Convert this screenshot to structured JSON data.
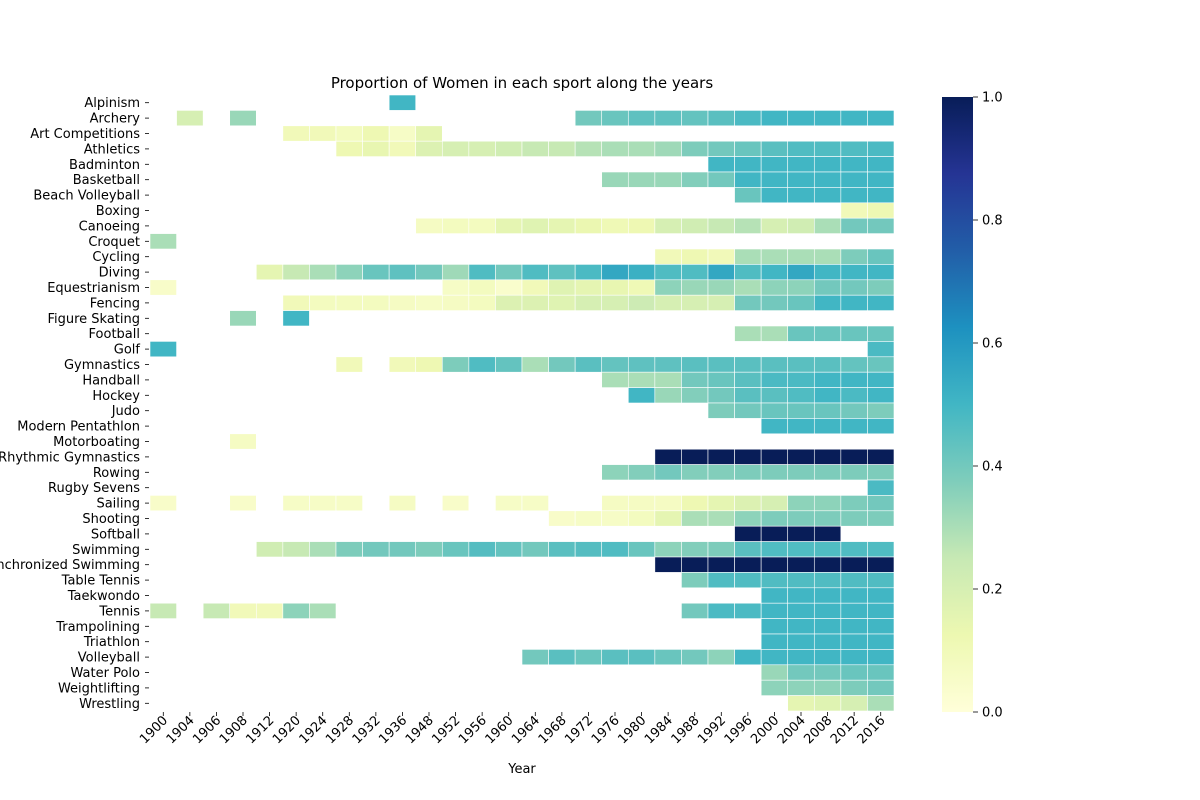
{
  "chart_data": {
    "type": "heatmap",
    "title": "Proportion of Women in each sport along the years",
    "xlabel": "Year",
    "ylabel": "",
    "x": [
      "1900",
      "1904",
      "1906",
      "1908",
      "1912",
      "1920",
      "1924",
      "1928",
      "1932",
      "1936",
      "1948",
      "1952",
      "1956",
      "1960",
      "1964",
      "1968",
      "1972",
      "1976",
      "1980",
      "1984",
      "1988",
      "1992",
      "1996",
      "2000",
      "2004",
      "2008",
      "2012",
      "2016"
    ],
    "y": [
      "Alpinism",
      "Archery",
      "Art Competitions",
      "Athletics",
      "Badminton",
      "Basketball",
      "Beach Volleyball",
      "Boxing",
      "Canoeing",
      "Croquet",
      "Cycling",
      "Diving",
      "Equestrianism",
      "Fencing",
      "Figure Skating",
      "Football",
      "Golf",
      "Gymnastics",
      "Handball",
      "Hockey",
      "Judo",
      "Modern Pentathlon",
      "Motorboating",
      "Rhythmic Gymnastics",
      "Rowing",
      "Rugby Sevens",
      "Sailing",
      "Shooting",
      "Softball",
      "Swimming",
      "Synchronized Swimming",
      "Table Tennis",
      "Taekwondo",
      "Tennis",
      "Trampolining",
      "Triathlon",
      "Volleyball",
      "Water Polo",
      "Weightlifting",
      "Wrestling"
    ],
    "values": [
      [
        null,
        null,
        null,
        null,
        null,
        null,
        null,
        null,
        null,
        0.5,
        null,
        null,
        null,
        null,
        null,
        null,
        null,
        null,
        null,
        null,
        null,
        null,
        null,
        null,
        null,
        null,
        null,
        null
      ],
      [
        null,
        0.2,
        null,
        0.33,
        null,
        null,
        null,
        null,
        null,
        null,
        null,
        null,
        null,
        null,
        null,
        null,
        0.4,
        0.42,
        0.44,
        0.44,
        0.43,
        0.45,
        0.48,
        0.5,
        0.5,
        0.5,
        0.5,
        0.5
      ],
      [
        null,
        null,
        null,
        null,
        null,
        0.1,
        0.1,
        0.08,
        0.12,
        0.06,
        0.15,
        null,
        null,
        null,
        null,
        null,
        null,
        null,
        null,
        null,
        null,
        null,
        null,
        null,
        null,
        null,
        null,
        null
      ],
      [
        null,
        null,
        null,
        null,
        null,
        null,
        null,
        0.12,
        0.14,
        0.1,
        0.18,
        0.2,
        0.2,
        0.22,
        0.25,
        0.25,
        0.28,
        0.3,
        0.3,
        0.32,
        0.38,
        0.4,
        0.42,
        0.45,
        0.47,
        0.47,
        0.47,
        0.48
      ],
      [
        null,
        null,
        null,
        null,
        null,
        null,
        null,
        null,
        null,
        null,
        null,
        null,
        null,
        null,
        null,
        null,
        null,
        null,
        null,
        null,
        null,
        0.5,
        0.5,
        0.5,
        0.5,
        0.5,
        0.5,
        0.5
      ],
      [
        null,
        null,
        null,
        null,
        null,
        null,
        null,
        null,
        null,
        null,
        null,
        null,
        null,
        null,
        null,
        null,
        null,
        0.33,
        0.33,
        0.33,
        0.37,
        0.4,
        0.5,
        0.5,
        0.5,
        0.5,
        0.5,
        0.5
      ],
      [
        null,
        null,
        null,
        null,
        null,
        null,
        null,
        null,
        null,
        null,
        null,
        null,
        null,
        null,
        null,
        null,
        null,
        null,
        null,
        null,
        null,
        null,
        0.42,
        0.5,
        0.5,
        0.5,
        0.5,
        0.5
      ],
      [
        null,
        null,
        null,
        null,
        null,
        null,
        null,
        null,
        null,
        null,
        null,
        null,
        null,
        null,
        null,
        null,
        null,
        null,
        null,
        null,
        null,
        null,
        null,
        null,
        null,
        null,
        0.1,
        0.12
      ],
      [
        null,
        null,
        null,
        null,
        null,
        null,
        null,
        null,
        null,
        null,
        0.07,
        0.08,
        0.08,
        0.15,
        0.17,
        0.15,
        0.13,
        0.11,
        0.12,
        0.2,
        0.22,
        0.25,
        0.28,
        0.2,
        0.22,
        0.3,
        0.4,
        0.4
      ],
      [
        0.3,
        null,
        null,
        null,
        null,
        null,
        null,
        null,
        null,
        null,
        null,
        null,
        null,
        null,
        null,
        null,
        null,
        null,
        null,
        null,
        null,
        null,
        null,
        null,
        null,
        null,
        null,
        null
      ],
      [
        null,
        null,
        null,
        null,
        null,
        null,
        null,
        null,
        null,
        null,
        null,
        null,
        null,
        null,
        null,
        null,
        null,
        null,
        null,
        0.1,
        0.12,
        0.1,
        0.3,
        0.3,
        0.3,
        0.3,
        0.38,
        0.42
      ],
      [
        null,
        null,
        null,
        null,
        0.15,
        0.25,
        0.3,
        0.35,
        0.42,
        0.44,
        0.4,
        0.32,
        0.47,
        0.4,
        0.47,
        0.44,
        0.48,
        0.55,
        0.52,
        0.47,
        0.47,
        0.55,
        0.47,
        0.5,
        0.55,
        0.5,
        0.5,
        0.5
      ],
      [
        0.05,
        null,
        null,
        null,
        null,
        null,
        null,
        null,
        null,
        null,
        null,
        0.06,
        0.08,
        0.04,
        0.1,
        0.17,
        0.15,
        0.14,
        0.11,
        0.35,
        0.33,
        0.33,
        0.3,
        0.35,
        0.35,
        0.4,
        0.4,
        0.38
      ],
      [
        null,
        null,
        null,
        null,
        null,
        0.1,
        0.08,
        0.08,
        0.08,
        0.07,
        0.06,
        0.07,
        0.08,
        0.18,
        0.18,
        0.17,
        0.2,
        0.2,
        0.23,
        0.2,
        0.2,
        0.2,
        0.4,
        0.4,
        0.42,
        0.5,
        0.5,
        0.5
      ],
      [
        null,
        null,
        null,
        0.33,
        null,
        0.5,
        null,
        null,
        null,
        null,
        null,
        null,
        null,
        null,
        null,
        null,
        null,
        null,
        null,
        null,
        null,
        null,
        null,
        null,
        null,
        null,
        null,
        null
      ],
      [
        null,
        null,
        null,
        null,
        null,
        null,
        null,
        null,
        null,
        null,
        null,
        null,
        null,
        null,
        null,
        null,
        null,
        null,
        null,
        null,
        null,
        null,
        0.3,
        0.3,
        0.42,
        0.42,
        0.42,
        0.42
      ],
      [
        0.5,
        null,
        null,
        null,
        null,
        null,
        null,
        null,
        null,
        null,
        null,
        null,
        null,
        null,
        null,
        null,
        null,
        null,
        null,
        null,
        null,
        null,
        null,
        null,
        null,
        null,
        null,
        0.48
      ],
      [
        null,
        null,
        null,
        null,
        null,
        null,
        null,
        0.1,
        null,
        0.1,
        0.12,
        0.38,
        0.47,
        0.43,
        0.3,
        0.4,
        0.45,
        0.43,
        0.44,
        0.44,
        0.45,
        0.45,
        0.45,
        0.45,
        0.45,
        0.45,
        0.43,
        0.42
      ],
      [
        null,
        null,
        null,
        null,
        null,
        null,
        null,
        null,
        null,
        null,
        null,
        null,
        null,
        null,
        null,
        null,
        null,
        0.3,
        0.3,
        0.3,
        0.4,
        0.42,
        0.45,
        0.48,
        0.48,
        0.5,
        0.5,
        0.5
      ],
      [
        null,
        null,
        null,
        null,
        null,
        null,
        null,
        null,
        null,
        null,
        null,
        null,
        null,
        null,
        null,
        null,
        null,
        null,
        0.5,
        0.33,
        0.37,
        0.4,
        0.45,
        0.45,
        0.47,
        0.5,
        0.48,
        0.5
      ],
      [
        null,
        null,
        null,
        null,
        null,
        null,
        null,
        null,
        null,
        null,
        null,
        null,
        null,
        null,
        null,
        null,
        null,
        null,
        null,
        null,
        null,
        0.38,
        0.4,
        0.42,
        0.42,
        0.42,
        0.4,
        0.38
      ],
      [
        null,
        null,
        null,
        null,
        null,
        null,
        null,
        null,
        null,
        null,
        null,
        null,
        null,
        null,
        null,
        null,
        null,
        null,
        null,
        null,
        null,
        null,
        null,
        0.5,
        0.5,
        0.5,
        0.5,
        0.5
      ],
      [
        null,
        null,
        null,
        0.07,
        null,
        null,
        null,
        null,
        null,
        null,
        null,
        null,
        null,
        null,
        null,
        null,
        null,
        null,
        null,
        null,
        null,
        null,
        null,
        null,
        null,
        null,
        null,
        null
      ],
      [
        null,
        null,
        null,
        null,
        null,
        null,
        null,
        null,
        null,
        null,
        null,
        null,
        null,
        null,
        null,
        null,
        null,
        null,
        null,
        1,
        1,
        1,
        1,
        1,
        1,
        1,
        1,
        1
      ],
      [
        null,
        null,
        null,
        null,
        null,
        null,
        null,
        null,
        null,
        null,
        null,
        null,
        null,
        null,
        null,
        null,
        null,
        0.35,
        0.37,
        0.4,
        0.37,
        0.37,
        0.38,
        0.38,
        0.38,
        0.38,
        0.38,
        0.38
      ],
      [
        null,
        null,
        null,
        null,
        null,
        null,
        null,
        null,
        null,
        null,
        null,
        null,
        null,
        null,
        null,
        null,
        null,
        null,
        null,
        null,
        null,
        null,
        null,
        null,
        null,
        null,
        null,
        0.48
      ],
      [
        0.05,
        null,
        null,
        0.05,
        null,
        0.06,
        0.06,
        0.06,
        null,
        0.07,
        null,
        0.05,
        null,
        0.06,
        0.06,
        null,
        null,
        0.07,
        0.07,
        0.07,
        0.12,
        0.15,
        0.18,
        0.2,
        0.35,
        0.35,
        0.38,
        0.4
      ],
      [
        null,
        null,
        null,
        null,
        null,
        null,
        null,
        null,
        null,
        null,
        null,
        null,
        null,
        null,
        null,
        0.05,
        0.06,
        0.06,
        0.08,
        0.15,
        0.3,
        0.3,
        0.35,
        0.38,
        0.38,
        0.38,
        0.38,
        0.38
      ],
      [
        null,
        null,
        null,
        null,
        null,
        null,
        null,
        null,
        null,
        null,
        null,
        null,
        null,
        null,
        null,
        null,
        null,
        null,
        null,
        null,
        null,
        null,
        1,
        1,
        1,
        1,
        null,
        null
      ],
      [
        null,
        null,
        null,
        null,
        0.22,
        0.25,
        0.3,
        0.38,
        0.4,
        0.4,
        0.38,
        0.42,
        0.46,
        0.43,
        0.4,
        0.45,
        0.46,
        0.47,
        0.42,
        0.35,
        0.37,
        0.38,
        0.45,
        0.47,
        0.47,
        0.47,
        0.47,
        0.47
      ],
      [
        null,
        null,
        null,
        null,
        null,
        null,
        null,
        null,
        null,
        null,
        null,
        null,
        null,
        null,
        null,
        null,
        null,
        null,
        null,
        1,
        1,
        1,
        1,
        1,
        1,
        1,
        1,
        1
      ],
      [
        null,
        null,
        null,
        null,
        null,
        null,
        null,
        null,
        null,
        null,
        null,
        null,
        null,
        null,
        null,
        null,
        null,
        null,
        null,
        null,
        0.38,
        0.47,
        0.47,
        0.47,
        0.47,
        0.47,
        0.47,
        0.47
      ],
      [
        null,
        null,
        null,
        null,
        null,
        null,
        null,
        null,
        null,
        null,
        null,
        null,
        null,
        null,
        null,
        null,
        null,
        null,
        null,
        null,
        null,
        null,
        null,
        0.5,
        0.5,
        0.5,
        0.5,
        0.5
      ],
      [
        0.25,
        null,
        0.25,
        0.1,
        0.1,
        0.35,
        0.3,
        null,
        null,
        null,
        null,
        null,
        null,
        null,
        null,
        null,
        null,
        null,
        null,
        null,
        0.4,
        0.48,
        0.48,
        0.5,
        0.5,
        0.5,
        0.5,
        0.5
      ],
      [
        null,
        null,
        null,
        null,
        null,
        null,
        null,
        null,
        null,
        null,
        null,
        null,
        null,
        null,
        null,
        null,
        null,
        null,
        null,
        null,
        null,
        null,
        null,
        0.5,
        0.5,
        0.5,
        0.5,
        0.5
      ],
      [
        null,
        null,
        null,
        null,
        null,
        null,
        null,
        null,
        null,
        null,
        null,
        null,
        null,
        null,
        null,
        null,
        null,
        null,
        null,
        null,
        null,
        null,
        null,
        0.5,
        0.5,
        0.5,
        0.5,
        0.5
      ],
      [
        null,
        null,
        null,
        null,
        null,
        null,
        null,
        null,
        null,
        null,
        null,
        null,
        null,
        null,
        0.4,
        0.45,
        0.42,
        0.45,
        0.45,
        0.42,
        0.4,
        0.35,
        0.5,
        0.5,
        0.5,
        0.5,
        0.5,
        0.5
      ],
      [
        null,
        null,
        null,
        null,
        null,
        null,
        null,
        null,
        null,
        null,
        null,
        null,
        null,
        null,
        null,
        null,
        null,
        null,
        null,
        null,
        null,
        null,
        null,
        0.33,
        0.4,
        0.4,
        0.42,
        0.42
      ],
      [
        null,
        null,
        null,
        null,
        null,
        null,
        null,
        null,
        null,
        null,
        null,
        null,
        null,
        null,
        null,
        null,
        null,
        null,
        null,
        null,
        null,
        null,
        null,
        0.35,
        0.35,
        0.35,
        0.38,
        0.4
      ],
      [
        null,
        null,
        null,
        null,
        null,
        null,
        null,
        null,
        null,
        null,
        null,
        null,
        null,
        null,
        null,
        null,
        null,
        null,
        null,
        null,
        null,
        null,
        null,
        null,
        0.15,
        0.17,
        0.2,
        0.3
      ]
    ],
    "colorbar": {
      "min": 0,
      "max": 1,
      "ticks": [
        "0.0",
        "0.2",
        "0.4",
        "0.6",
        "0.8",
        "1.0"
      ],
      "colormap": "YlGnBu"
    },
    "grid": false
  }
}
